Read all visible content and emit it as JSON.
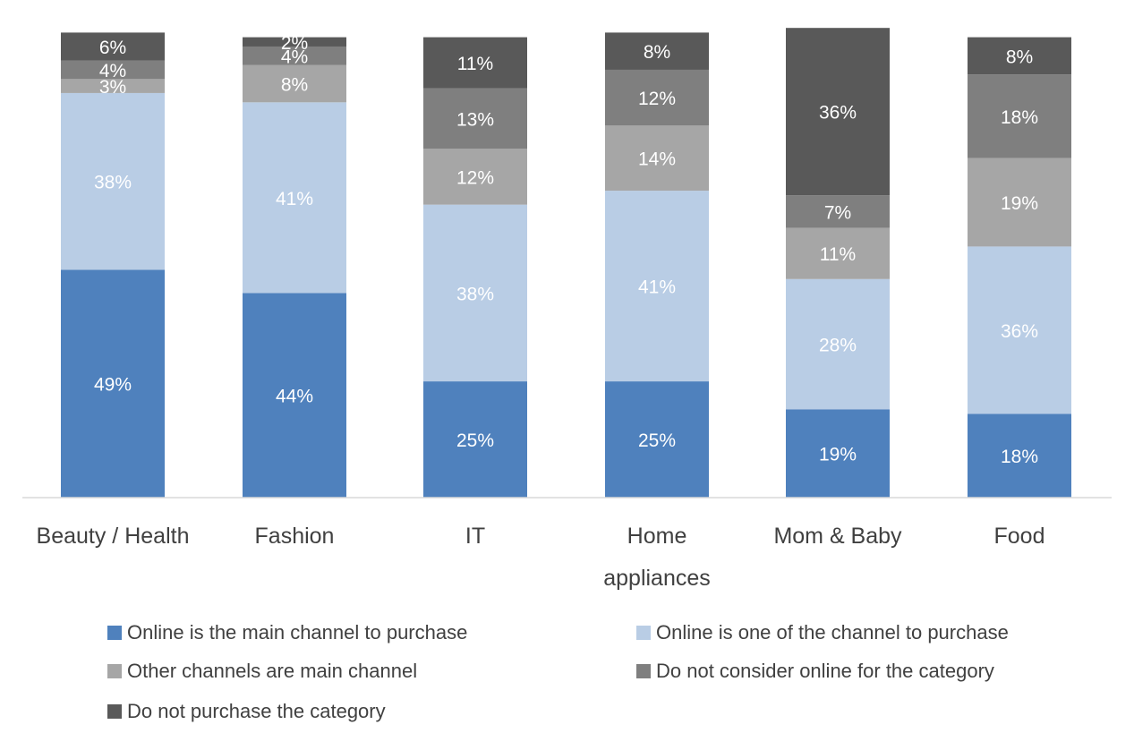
{
  "chart_data": {
    "type": "bar",
    "stacked": true,
    "title": "",
    "xlabel": "",
    "ylabel": "",
    "ylim": [
      0,
      100
    ],
    "grid": false,
    "legend_position": "bottom",
    "categories": [
      "Beauty / Health",
      "Fashion",
      "IT",
      "Home appliances",
      "Mom & Baby",
      "Food"
    ],
    "series": [
      {
        "name": "Online is the main channel to purchase",
        "color": "#4f81bd",
        "label_color": "#ffffff",
        "values": [
          49,
          44,
          25,
          25,
          19,
          18
        ],
        "labels": [
          "49%",
          "44%",
          "25%",
          "25%",
          "19%",
          "18%"
        ]
      },
      {
        "name": "Online is one of the channel to purchase",
        "color": "#b9cde5",
        "label_color": "#ffffff",
        "values": [
          38,
          41,
          38,
          41,
          28,
          36
        ],
        "labels": [
          "38%",
          "41%",
          "38%",
          "41%",
          "28%",
          "36%"
        ]
      },
      {
        "name": "Other channels are main channel",
        "color": "#a6a6a6",
        "label_color": "#ffffff",
        "values": [
          3,
          8,
          12,
          14,
          11,
          19
        ],
        "labels": [
          "3%",
          "8%",
          "12%",
          "14%",
          "11%",
          "19%"
        ]
      },
      {
        "name": "Do not consider online for the category",
        "color": "#7f7f7f",
        "label_color": "#ffffff",
        "values": [
          4,
          4,
          13,
          12,
          7,
          18
        ],
        "labels": [
          "4%",
          "4%",
          "13%",
          "12%",
          "7%",
          "18%"
        ]
      },
      {
        "name": "Do not purchase the category",
        "color": "#595959",
        "label_color": "#ffffff",
        "values": [
          6,
          2,
          11,
          8,
          36,
          8
        ],
        "labels": [
          "6%",
          "2%",
          "11%",
          "8%",
          "36%",
          "8%"
        ]
      }
    ]
  }
}
